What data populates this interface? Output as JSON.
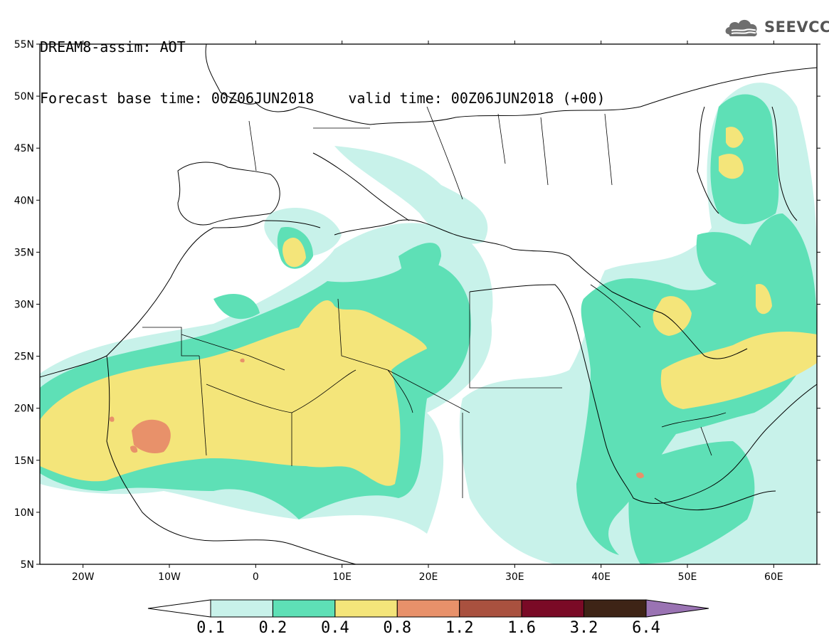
{
  "header": {
    "title": "DREAM8-assim: AOT",
    "base_time": "Forecast base time: 00Z06JUN2018",
    "valid_time": "valid time: 00Z06JUN2018 (+00)"
  },
  "logo": {
    "text": "SEEVCCC",
    "icon": "cloud-icon"
  },
  "map": {
    "lat_labels": [
      "55N",
      "50N",
      "45N",
      "40N",
      "35N",
      "30N",
      "25N",
      "20N",
      "15N",
      "10N",
      "5N"
    ],
    "lon_labels": [
      "20W",
      "10W",
      "0",
      "10E",
      "20E",
      "30E",
      "40E",
      "50E",
      "60E"
    ],
    "lat_range": [
      5,
      55
    ],
    "lon_range": [
      -25,
      65
    ]
  },
  "colorbar": {
    "colors": [
      "#ffffff",
      "#c8f2ea",
      "#5ee0b6",
      "#f4e57a",
      "#e8916a",
      "#a9513f",
      "#7a0a26",
      "#3e2416",
      "#9a73b3"
    ],
    "labels": [
      "0.1",
      "0.2",
      "0.4",
      "0.8",
      "1.2",
      "1.6",
      "3.2",
      "6.4"
    ]
  }
}
